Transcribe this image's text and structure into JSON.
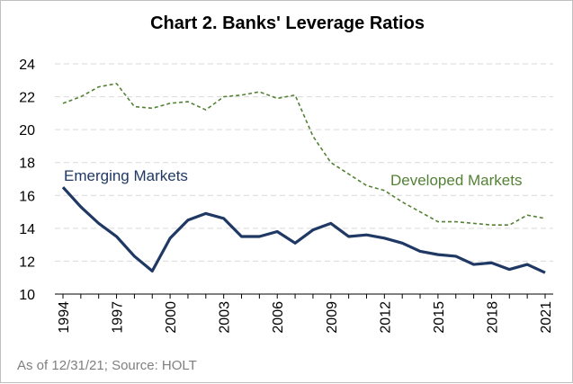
{
  "chart_data": {
    "type": "line",
    "title": "Chart 2. Banks' Leverage Ratios",
    "xlabel": "",
    "ylabel": "",
    "ylim": [
      10,
      24
    ],
    "yticks": [
      10,
      12,
      14,
      16,
      18,
      20,
      22,
      24
    ],
    "x": [
      1994,
      1995,
      1996,
      1997,
      1998,
      1999,
      2000,
      2001,
      2002,
      2003,
      2004,
      2005,
      2006,
      2007,
      2008,
      2009,
      2010,
      2011,
      2012,
      2013,
      2014,
      2015,
      2016,
      2017,
      2018,
      2019,
      2020,
      2021
    ],
    "xtick_labels": [
      "1994",
      "1997",
      "2000",
      "2003",
      "2006",
      "2009",
      "2012",
      "2015",
      "2018",
      "2021"
    ],
    "grid": "horizontal dashed",
    "series": [
      {
        "name": "Emerging Markets",
        "color": "#1f3864",
        "style": "solid",
        "values": [
          16.5,
          15.3,
          14.3,
          13.5,
          12.3,
          11.4,
          13.4,
          14.5,
          14.9,
          14.6,
          13.5,
          13.5,
          13.8,
          13.1,
          13.9,
          14.3,
          13.5,
          13.6,
          13.4,
          13.1,
          12.6,
          12.4,
          12.3,
          11.8,
          11.9,
          11.5,
          11.8,
          11.3
        ]
      },
      {
        "name": "Developed Markets",
        "color": "#548235",
        "style": "dashed",
        "values": [
          21.6,
          22.0,
          22.6,
          22.8,
          21.4,
          21.3,
          21.6,
          21.7,
          21.2,
          22.0,
          22.1,
          22.3,
          21.9,
          22.1,
          19.6,
          18.0,
          17.3,
          16.6,
          16.3,
          15.6,
          15.0,
          14.4,
          14.4,
          14.3,
          14.2,
          14.2,
          14.8,
          14.6
        ]
      }
    ]
  },
  "source_note": "As of 12/31/21; Source: HOLT"
}
